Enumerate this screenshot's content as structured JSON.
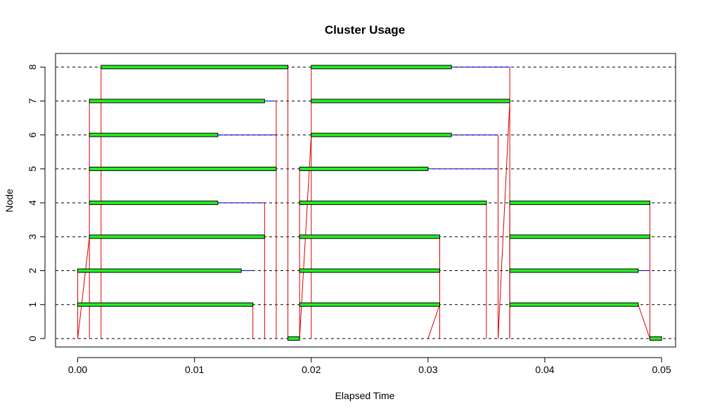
{
  "chart_data": {
    "type": "gantt",
    "title": "Cluster Usage",
    "xlabel": "Elapsed Time",
    "ylabel": "Node",
    "xlim": [
      -0.0019,
      0.0512
    ],
    "ylim": [
      -0.25,
      8.4
    ],
    "xticks": [
      0,
      0.01,
      0.02,
      0.03,
      0.04,
      0.05
    ],
    "xtick_labels": [
      "0.00",
      "0.01",
      "0.02",
      "0.03",
      "0.04",
      "0.05"
    ],
    "yticks": [
      0,
      1,
      2,
      3,
      4,
      5,
      6,
      7,
      8
    ],
    "ytick_labels": [
      "0",
      "1",
      "2",
      "3",
      "4",
      "5",
      "6",
      "7",
      "8"
    ],
    "grid": "dashed horizontal at each node",
    "colors": {
      "bar_fill": "#22ee22",
      "bar_stroke": "#000000",
      "wait_line": "#0000cc",
      "comm_line": "#dd0000",
      "grid": "#000000"
    },
    "busy_segments": [
      {
        "node": 8,
        "start": 0.002,
        "end": 0.018
      },
      {
        "node": 7,
        "start": 0.001,
        "end": 0.016
      },
      {
        "node": 6,
        "start": 0.001,
        "end": 0.012
      },
      {
        "node": 5,
        "start": 0.001,
        "end": 0.017
      },
      {
        "node": 4,
        "start": 0.001,
        "end": 0.012
      },
      {
        "node": 3,
        "start": 0.001,
        "end": 0.016
      },
      {
        "node": 2,
        "start": 0.0,
        "end": 0.014
      },
      {
        "node": 1,
        "start": 0.0,
        "end": 0.015
      },
      {
        "node": 0,
        "start": 0.018,
        "end": 0.019
      },
      {
        "node": 8,
        "start": 0.02,
        "end": 0.032
      },
      {
        "node": 7,
        "start": 0.02,
        "end": 0.037
      },
      {
        "node": 6,
        "start": 0.02,
        "end": 0.032
      },
      {
        "node": 5,
        "start": 0.019,
        "end": 0.03
      },
      {
        "node": 4,
        "start": 0.019,
        "end": 0.035
      },
      {
        "node": 3,
        "start": 0.019,
        "end": 0.031
      },
      {
        "node": 2,
        "start": 0.019,
        "end": 0.031
      },
      {
        "node": 1,
        "start": 0.019,
        "end": 0.031
      },
      {
        "node": 4,
        "start": 0.037,
        "end": 0.049
      },
      {
        "node": 3,
        "start": 0.037,
        "end": 0.049
      },
      {
        "node": 2,
        "start": 0.037,
        "end": 0.048
      },
      {
        "node": 1,
        "start": 0.037,
        "end": 0.048
      },
      {
        "node": 0,
        "start": 0.049,
        "end": 0.05
      }
    ],
    "wait_segments": [
      {
        "node": 7,
        "start": 0.016,
        "end": 0.017
      },
      {
        "node": 6,
        "start": 0.012,
        "end": 0.017
      },
      {
        "node": 4,
        "start": 0.012,
        "end": 0.016
      },
      {
        "node": 2,
        "start": 0.014,
        "end": 0.015
      },
      {
        "node": 8,
        "start": 0.032,
        "end": 0.037
      },
      {
        "node": 6,
        "start": 0.032,
        "end": 0.036
      },
      {
        "node": 5,
        "start": 0.03,
        "end": 0.036
      },
      {
        "node": 2,
        "start": 0.048,
        "end": 0.049
      }
    ],
    "messages": [
      {
        "x1": 0.0,
        "y1": 0,
        "x2": 0.0,
        "y2": 2
      },
      {
        "x1": 0.0,
        "y1": 0,
        "x2": 0.001,
        "y2": 3
      },
      {
        "x1": 0.001,
        "y1": 0,
        "x2": 0.001,
        "y2": 7
      },
      {
        "x1": 0.002,
        "y1": 0,
        "x2": 0.002,
        "y2": 8
      },
      {
        "x1": 0.015,
        "y1": 1,
        "x2": 0.015,
        "y2": 0
      },
      {
        "x1": 0.016,
        "y1": 4,
        "x2": 0.016,
        "y2": 0
      },
      {
        "x1": 0.017,
        "y1": 7,
        "x2": 0.017,
        "y2": 0
      },
      {
        "x1": 0.018,
        "y1": 8,
        "x2": 0.018,
        "y2": 0
      },
      {
        "x1": 0.019,
        "y1": 0,
        "x2": 0.019,
        "y2": 5
      },
      {
        "x1": 0.019,
        "y1": 0,
        "x2": 0.02,
        "y2": 6
      },
      {
        "x1": 0.02,
        "y1": 0,
        "x2": 0.02,
        "y2": 8
      },
      {
        "x1": 0.03,
        "y1": 0,
        "x2": 0.031,
        "y2": 1
      },
      {
        "x1": 0.031,
        "y1": 3,
        "x2": 0.031,
        "y2": 0
      },
      {
        "x1": 0.035,
        "y1": 4,
        "x2": 0.035,
        "y2": 0
      },
      {
        "x1": 0.036,
        "y1": 6,
        "x2": 0.036,
        "y2": 0
      },
      {
        "x1": 0.036,
        "y1": 0,
        "x2": 0.037,
        "y2": 7
      },
      {
        "x1": 0.037,
        "y1": 8,
        "x2": 0.037,
        "y2": 0
      },
      {
        "x1": 0.037,
        "y1": 0,
        "x2": 0.037,
        "y2": 4
      },
      {
        "x1": 0.049,
        "y1": 4,
        "x2": 0.049,
        "y2": 0
      },
      {
        "x1": 0.048,
        "y1": 1,
        "x2": 0.049,
        "y2": 0
      }
    ]
  }
}
